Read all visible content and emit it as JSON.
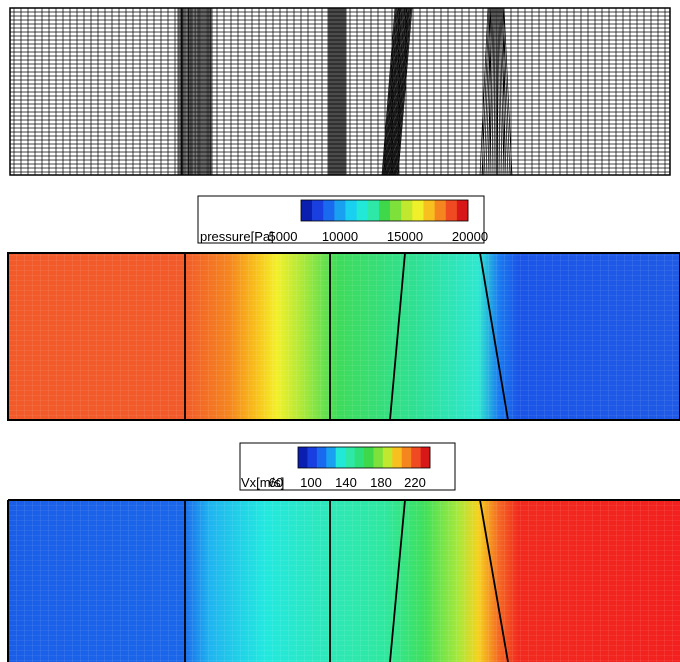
{
  "colorbars": [
    {
      "label": "pressure[Pa]",
      "ticks": [
        5000,
        10000,
        15000,
        20000
      ]
    },
    {
      "label": "Vx[m/s]",
      "ticks": [
        60,
        100,
        140,
        180,
        220
      ]
    }
  ]
}
